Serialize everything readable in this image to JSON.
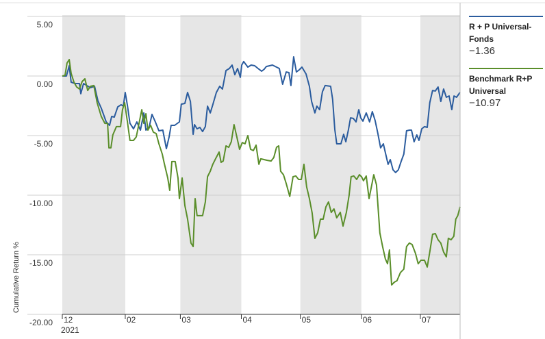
{
  "chart_data": {
    "type": "line",
    "ylabel": "Cumulative Return %",
    "xlim": [
      0,
      202.2
    ],
    "ylim": [
      -20,
      5
    ],
    "yticks": [
      {
        "value": 5,
        "label": "5.00"
      },
      {
        "value": 0,
        "label": "0.00"
      },
      {
        "value": -5,
        "label": "-5.00"
      },
      {
        "value": -10,
        "label": "-10.00"
      },
      {
        "value": -15,
        "label": "-15.00"
      },
      {
        "value": -20,
        "label": "-20.00"
      }
    ],
    "xticks": [
      {
        "value": 0,
        "label": "12"
      },
      {
        "value": 32,
        "label": "02"
      },
      {
        "value": 60,
        "label": "03"
      },
      {
        "value": 91,
        "label": "04"
      },
      {
        "value": 121,
        "label": "05"
      },
      {
        "value": 152,
        "label": "06"
      },
      {
        "value": 182,
        "label": "07"
      }
    ],
    "year_label": "2021",
    "grid": true,
    "series": [
      {
        "name": "R + P Universal-Fonds",
        "color": "#2b5c9e",
        "legend_value": "−1.36",
        "x": [
          0,
          2.1,
          3.5,
          4.5,
          6.6,
          8.7,
          9.4,
          10.8,
          14.3,
          16.4,
          18.1,
          19.8,
          22.3,
          24.0,
          25.1,
          26.4,
          28.2,
          29.9,
          31.0,
          32.0,
          33.1,
          34.4,
          36.2,
          37.9,
          39.7,
          41.4,
          42.5,
          44.2,
          45.6,
          47.3,
          49.1,
          51.1,
          52.9,
          54.3,
          55.3,
          57.1,
          59.5,
          60.5,
          62.3,
          63.7,
          65.1,
          66.5,
          67.2,
          68.5,
          69.9,
          71.3,
          72.7,
          73.8,
          75.2,
          76.5,
          78.3,
          80.0,
          81.4,
          83.2,
          84.9,
          86.3,
          87.7,
          89.1,
          90.5,
          91.2,
          92.2,
          94.3,
          96.0,
          97.8,
          99.5,
          101.3,
          102.6,
          103.7,
          106.8,
          110.3,
          112.0,
          113.8,
          115.2,
          116.2,
          117.6,
          119.0,
          120.4,
          121.8,
          123.9,
          125.6,
          126.7,
          128.4,
          129.4,
          130.8,
          132.2,
          133.6,
          136.4,
          137.4,
          138.5,
          139.5,
          141.6,
          143.0,
          144.1,
          145.4,
          146.5,
          147.9,
          149.3,
          150.7,
          151.7,
          152.8,
          154.5,
          156.2,
          157.6,
          159.0,
          160.4,
          161.8,
          163.2,
          164.6,
          165.6,
          166.7,
          168.1,
          169.4,
          170.8,
          172.2,
          173.6,
          175.0,
          176.4,
          177.5,
          178.8,
          180.2,
          181.3,
          182.7,
          184.1,
          185.5,
          186.8,
          188.2,
          189.6,
          191.0,
          192.4,
          193.8,
          195.2,
          196.6,
          198.0,
          199.1,
          200.4,
          202.2
        ],
        "values": [
          0,
          0,
          0.86,
          -0.52,
          -0.63,
          -0.63,
          -1.49,
          -0.63,
          -0.98,
          -0.86,
          -2.07,
          -2.7,
          -3.85,
          -4.14,
          -3.39,
          -3.45,
          -2.59,
          -2.41,
          -2.53,
          -1.38,
          -2.47,
          -3.97,
          -4.43,
          -3.85,
          -4.54,
          -3.1,
          -4.54,
          -4.25,
          -3.22,
          -3.85,
          -4.6,
          -4.54,
          -6.09,
          -5.11,
          -4.14,
          -4.14,
          -3.85,
          -2.36,
          -2.3,
          -1.38,
          -2.13,
          -4.89,
          -4.08,
          -4.43,
          -4.31,
          -4.66,
          -4.25,
          -2.53,
          -3.1,
          -2.41,
          -1.38,
          -0.86,
          -1.09,
          0.46,
          0.63,
          0.92,
          0.11,
          0.63,
          -0.11,
          0.92,
          1.21,
          0.75,
          0.92,
          0.86,
          0.63,
          0.4,
          0.57,
          0.8,
          0.92,
          0.63,
          -0.69,
          0.34,
          0.29,
          -0.8,
          1.61,
          0.34,
          0.52,
          0.75,
          0.17,
          -0.86,
          -2.13,
          -3.1,
          -2.53,
          -2.82,
          -1.32,
          -0.8,
          -0.86,
          -1.95,
          -4.48,
          -5.69,
          -5.69,
          -4.89,
          -5.52,
          -4.54,
          -3.51,
          -3.56,
          -3.85,
          -2.82,
          -3.51,
          -3.79,
          -3.1,
          -3.85,
          -2.99,
          -3.74,
          -4.83,
          -6.03,
          -5.69,
          -6.72,
          -7.41,
          -7.01,
          -7.87,
          -8.1,
          -7.87,
          -7.18,
          -6.55,
          -4.6,
          -4.54,
          -4.54,
          -5.52,
          -4.94,
          -5.4,
          -4.43,
          -4.25,
          -4.31,
          -2.24,
          -1.21,
          -1.26,
          -0.92,
          -2.13,
          -1.09,
          -1.78,
          -1.67,
          -2.82,
          -1.67,
          -1.78,
          -1.36
        ]
      },
      {
        "name": "Benchmark R+P Universal",
        "color": "#5a8e2a",
        "legend_value": "−10.97",
        "x": [
          0,
          1.4,
          2.4,
          3.5,
          4.5,
          5.9,
          7.3,
          8.7,
          10.1,
          11.5,
          12.9,
          14.3,
          16.0,
          17.7,
          19.8,
          21.6,
          23.0,
          23.7,
          24.7,
          25.7,
          27.5,
          29.6,
          30.6,
          31.7,
          33.1,
          34.4,
          36.2,
          37.6,
          39.0,
          40.4,
          41.4,
          42.5,
          43.5,
          44.9,
          46.3,
          47.7,
          49.1,
          50.8,
          51.8,
          53.6,
          54.6,
          55.7,
          57.4,
          58.8,
          59.5,
          60.9,
          62.3,
          63.7,
          65.4,
          66.5,
          67.5,
          68.5,
          71.3,
          72.7,
          73.8,
          75.2,
          76.5,
          77.9,
          79.7,
          80.7,
          81.8,
          83.2,
          84.6,
          85.9,
          87.3,
          88.7,
          90.1,
          91.5,
          92.9,
          94.3,
          95.7,
          97.1,
          98.5,
          99.9,
          100.9,
          104.0,
          106.1,
          107.5,
          108.9,
          110.0,
          111.0,
          112.4,
          113.8,
          115.6,
          117.3,
          118.7,
          120.1,
          121.5,
          122.8,
          124.2,
          125.6,
          127.0,
          128.4,
          129.8,
          131.2,
          132.6,
          134.0,
          135.3,
          136.7,
          138.1,
          139.5,
          141.3,
          142.7,
          144.4,
          145.8,
          146.8,
          148.2,
          149.6,
          151.0,
          152.1,
          153.1,
          154.5,
          155.9,
          157.3,
          158.3,
          159.7,
          161.4,
          162.8,
          164.2,
          165.3,
          166.3,
          167.4,
          168.8,
          170.1,
          171.9,
          173.6,
          175.0,
          176.4,
          177.8,
          179.5,
          180.9,
          182.3,
          184.1,
          185.5,
          186.8,
          188.2,
          189.6,
          191.0,
          192.4,
          193.8,
          195.2,
          196.2,
          197.6,
          199.0,
          200.0,
          201.0,
          202.2
        ],
        "values": [
          0,
          0.06,
          1.09,
          1.38,
          0.23,
          -0.52,
          -0.92,
          -1.09,
          -0.46,
          -0.23,
          -1.21,
          -0.86,
          -0.8,
          -2.24,
          -3.39,
          -3.97,
          -3.97,
          -6.03,
          -6.03,
          -4.94,
          -4.25,
          -4.25,
          -2.82,
          -2.24,
          -3.85,
          -5.4,
          -5.4,
          -5.11,
          -3.97,
          -2.82,
          -3.97,
          -3.16,
          -4.54,
          -4.14,
          -4.71,
          -4.83,
          -5.69,
          -6.55,
          -7.3,
          -8.56,
          -9.6,
          -7.18,
          -7.18,
          -8.56,
          -10.29,
          -8.56,
          -10.86,
          -12.01,
          -14.02,
          -14.31,
          -10.29,
          -11.72,
          -11.72,
          -10.57,
          -8.45,
          -7.99,
          -7.41,
          -6.95,
          -6.38,
          -7.24,
          -7.13,
          -5.86,
          -5.98,
          -5.52,
          -4.08,
          -5.11,
          -6.15,
          -5.58,
          -5.69,
          -5.0,
          -6.15,
          -6.26,
          -5.8,
          -7.41,
          -6.95,
          -7.07,
          -7.13,
          -6.84,
          -5.98,
          -5.86,
          -7.99,
          -8.28,
          -9.02,
          -10.11,
          -8.45,
          -8.39,
          -8.68,
          -8.68,
          -7.41,
          -9.31,
          -10.29,
          -11.49,
          -13.62,
          -13.16,
          -12.01,
          -12.01,
          -10.98,
          -10.57,
          -11.44,
          -11.15,
          -11.9,
          -11.44,
          -12.59,
          -11.44,
          -10.0,
          -8.45,
          -8.39,
          -8.68,
          -8.28,
          -8.45,
          -8.79,
          -8.39,
          -10.29,
          -9.14,
          -8.28,
          -9.14,
          -13.16,
          -14.31,
          -15.34,
          -15.75,
          -14.6,
          -17.53,
          -17.3,
          -17.18,
          -16.49,
          -16.2,
          -14.31,
          -14.02,
          -14.14,
          -14.88,
          -15.75,
          -15.46,
          -15.46,
          -16.03,
          -14.77,
          -13.28,
          -13.22,
          -13.74,
          -14.02,
          -14.77,
          -15.17,
          -13.62,
          -13.74,
          -13.45,
          -12.01,
          -11.72,
          -10.97
        ]
      }
    ]
  }
}
